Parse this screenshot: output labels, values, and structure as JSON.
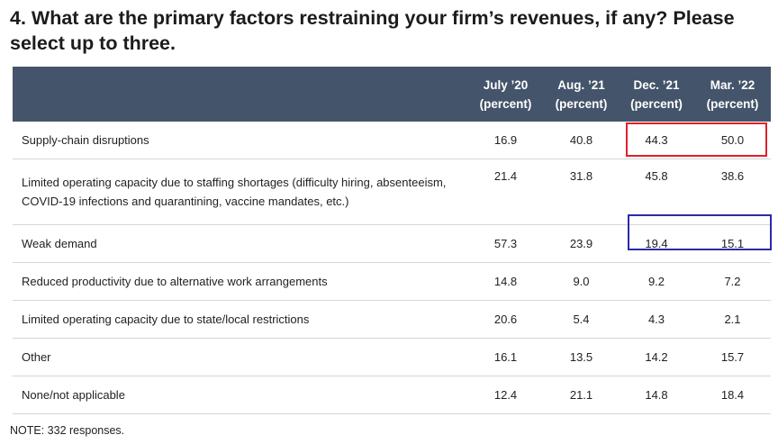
{
  "title": "4. What are the primary factors restraining your firm’s revenues, if any? Please select up to three.",
  "columns": [
    {
      "line1": "July ’20",
      "line2": "(percent)"
    },
    {
      "line1": "Aug. ’21",
      "line2": "(percent)"
    },
    {
      "line1": "Dec. ’21",
      "line2": "(percent)"
    },
    {
      "line1": "Mar. ’22",
      "line2": "(percent)"
    }
  ],
  "rows": [
    {
      "label": "Supply-chain disruptions",
      "values": [
        "16.9",
        "40.8",
        "44.3",
        "50.0"
      ]
    },
    {
      "label": "Limited operating capacity due to staffing shortages (difficulty hiring, absenteeism, COVID-19 infections and quarantining, vaccine mandates, etc.)",
      "values": [
        "21.4",
        "31.8",
        "45.8",
        "38.6"
      ]
    },
    {
      "label": "Weak demand",
      "values": [
        "57.3",
        "23.9",
        "19.4",
        "15.1"
      ]
    },
    {
      "label": "Reduced productivity due to alternative work arrangements",
      "values": [
        "14.8",
        "9.0",
        "9.2",
        "7.2"
      ]
    },
    {
      "label": "Limited operating capacity due to state/local restrictions",
      "values": [
        "20.6",
        "5.4",
        "4.3",
        "2.1"
      ]
    },
    {
      "label": "Other",
      "values": [
        "16.1",
        "13.5",
        "14.2",
        "15.7"
      ]
    },
    {
      "label": "None/not applicable",
      "values": [
        "12.4",
        "21.1",
        "14.8",
        "18.4"
      ]
    }
  ],
  "note": "NOTE: 332 responses.",
  "colors": {
    "header_bg": "#44546a",
    "highlight_red": "#e0202a",
    "highlight_blue": "#2b2ba8"
  }
}
